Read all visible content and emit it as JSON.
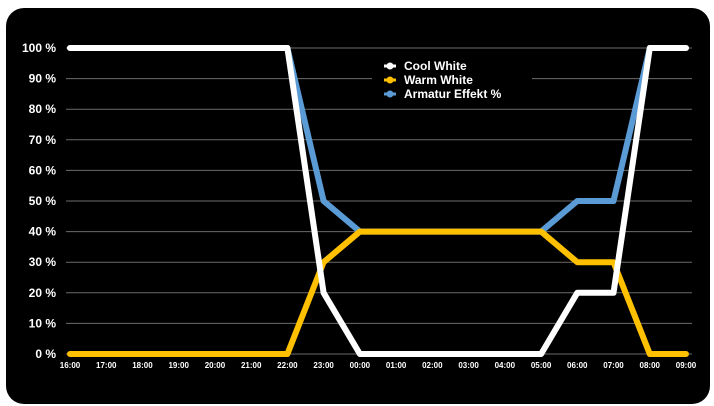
{
  "chart_data": {
    "type": "line",
    "title": "",
    "xlabel": "",
    "ylabel": "",
    "x": [
      "16:00",
      "17:00",
      "18:00",
      "19:00",
      "20:00",
      "21:00",
      "22:00",
      "23:00",
      "00:00",
      "01:00",
      "02:00",
      "03:00",
      "04:00",
      "05:00",
      "06:00",
      "07:00",
      "08:00",
      "09:00"
    ],
    "y_ticks": [
      "0 %",
      "10 %",
      "20 %",
      "30 %",
      "40 %",
      "50 %",
      "60 %",
      "70 %",
      "80 %",
      "90 %",
      "100 %"
    ],
    "ylim": [
      0,
      100
    ],
    "grid": true,
    "legend_position": "top-center",
    "background": "#000000",
    "series": [
      {
        "name": "Armatur Effekt %",
        "color": "#5B9BD5",
        "values": [
          100,
          100,
          100,
          100,
          100,
          100,
          100,
          50,
          40,
          40,
          40,
          40,
          40,
          40,
          50,
          50,
          100,
          100
        ]
      },
      {
        "name": "Warm White",
        "color": "#FFC000",
        "values": [
          0,
          0,
          0,
          0,
          0,
          0,
          0,
          30,
          40,
          40,
          40,
          40,
          40,
          40,
          30,
          30,
          0,
          0
        ]
      },
      {
        "name": "Cool White",
        "color": "#FFFFFF",
        "values": [
          100,
          100,
          100,
          100,
          100,
          100,
          100,
          20,
          0,
          0,
          0,
          0,
          0,
          0,
          20,
          20,
          100,
          100
        ]
      }
    ],
    "legend_order": [
      "Cool White",
      "Warm White",
      "Armatur Effekt %"
    ]
  }
}
